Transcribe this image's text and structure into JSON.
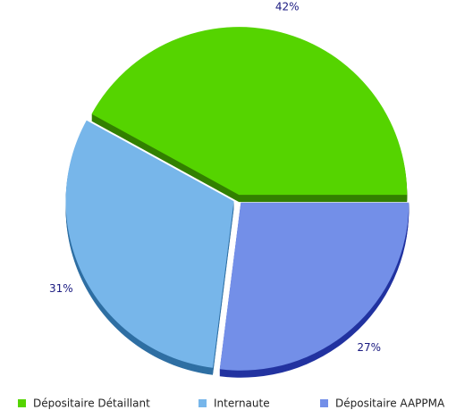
{
  "chart_data": {
    "type": "pie",
    "categories": [
      "Dépositaire Détaillant",
      "Internaute",
      "Dépositaire AAPPMA"
    ],
    "values": [
      42,
      31,
      27
    ],
    "value_labels": [
      "42%",
      "31%",
      "27%"
    ],
    "colors": [
      "#55d400",
      "#77b6ea",
      "#738fe8"
    ],
    "shadow_colors": [
      "#338000",
      "#2f6fa3",
      "#2233a0"
    ]
  }
}
